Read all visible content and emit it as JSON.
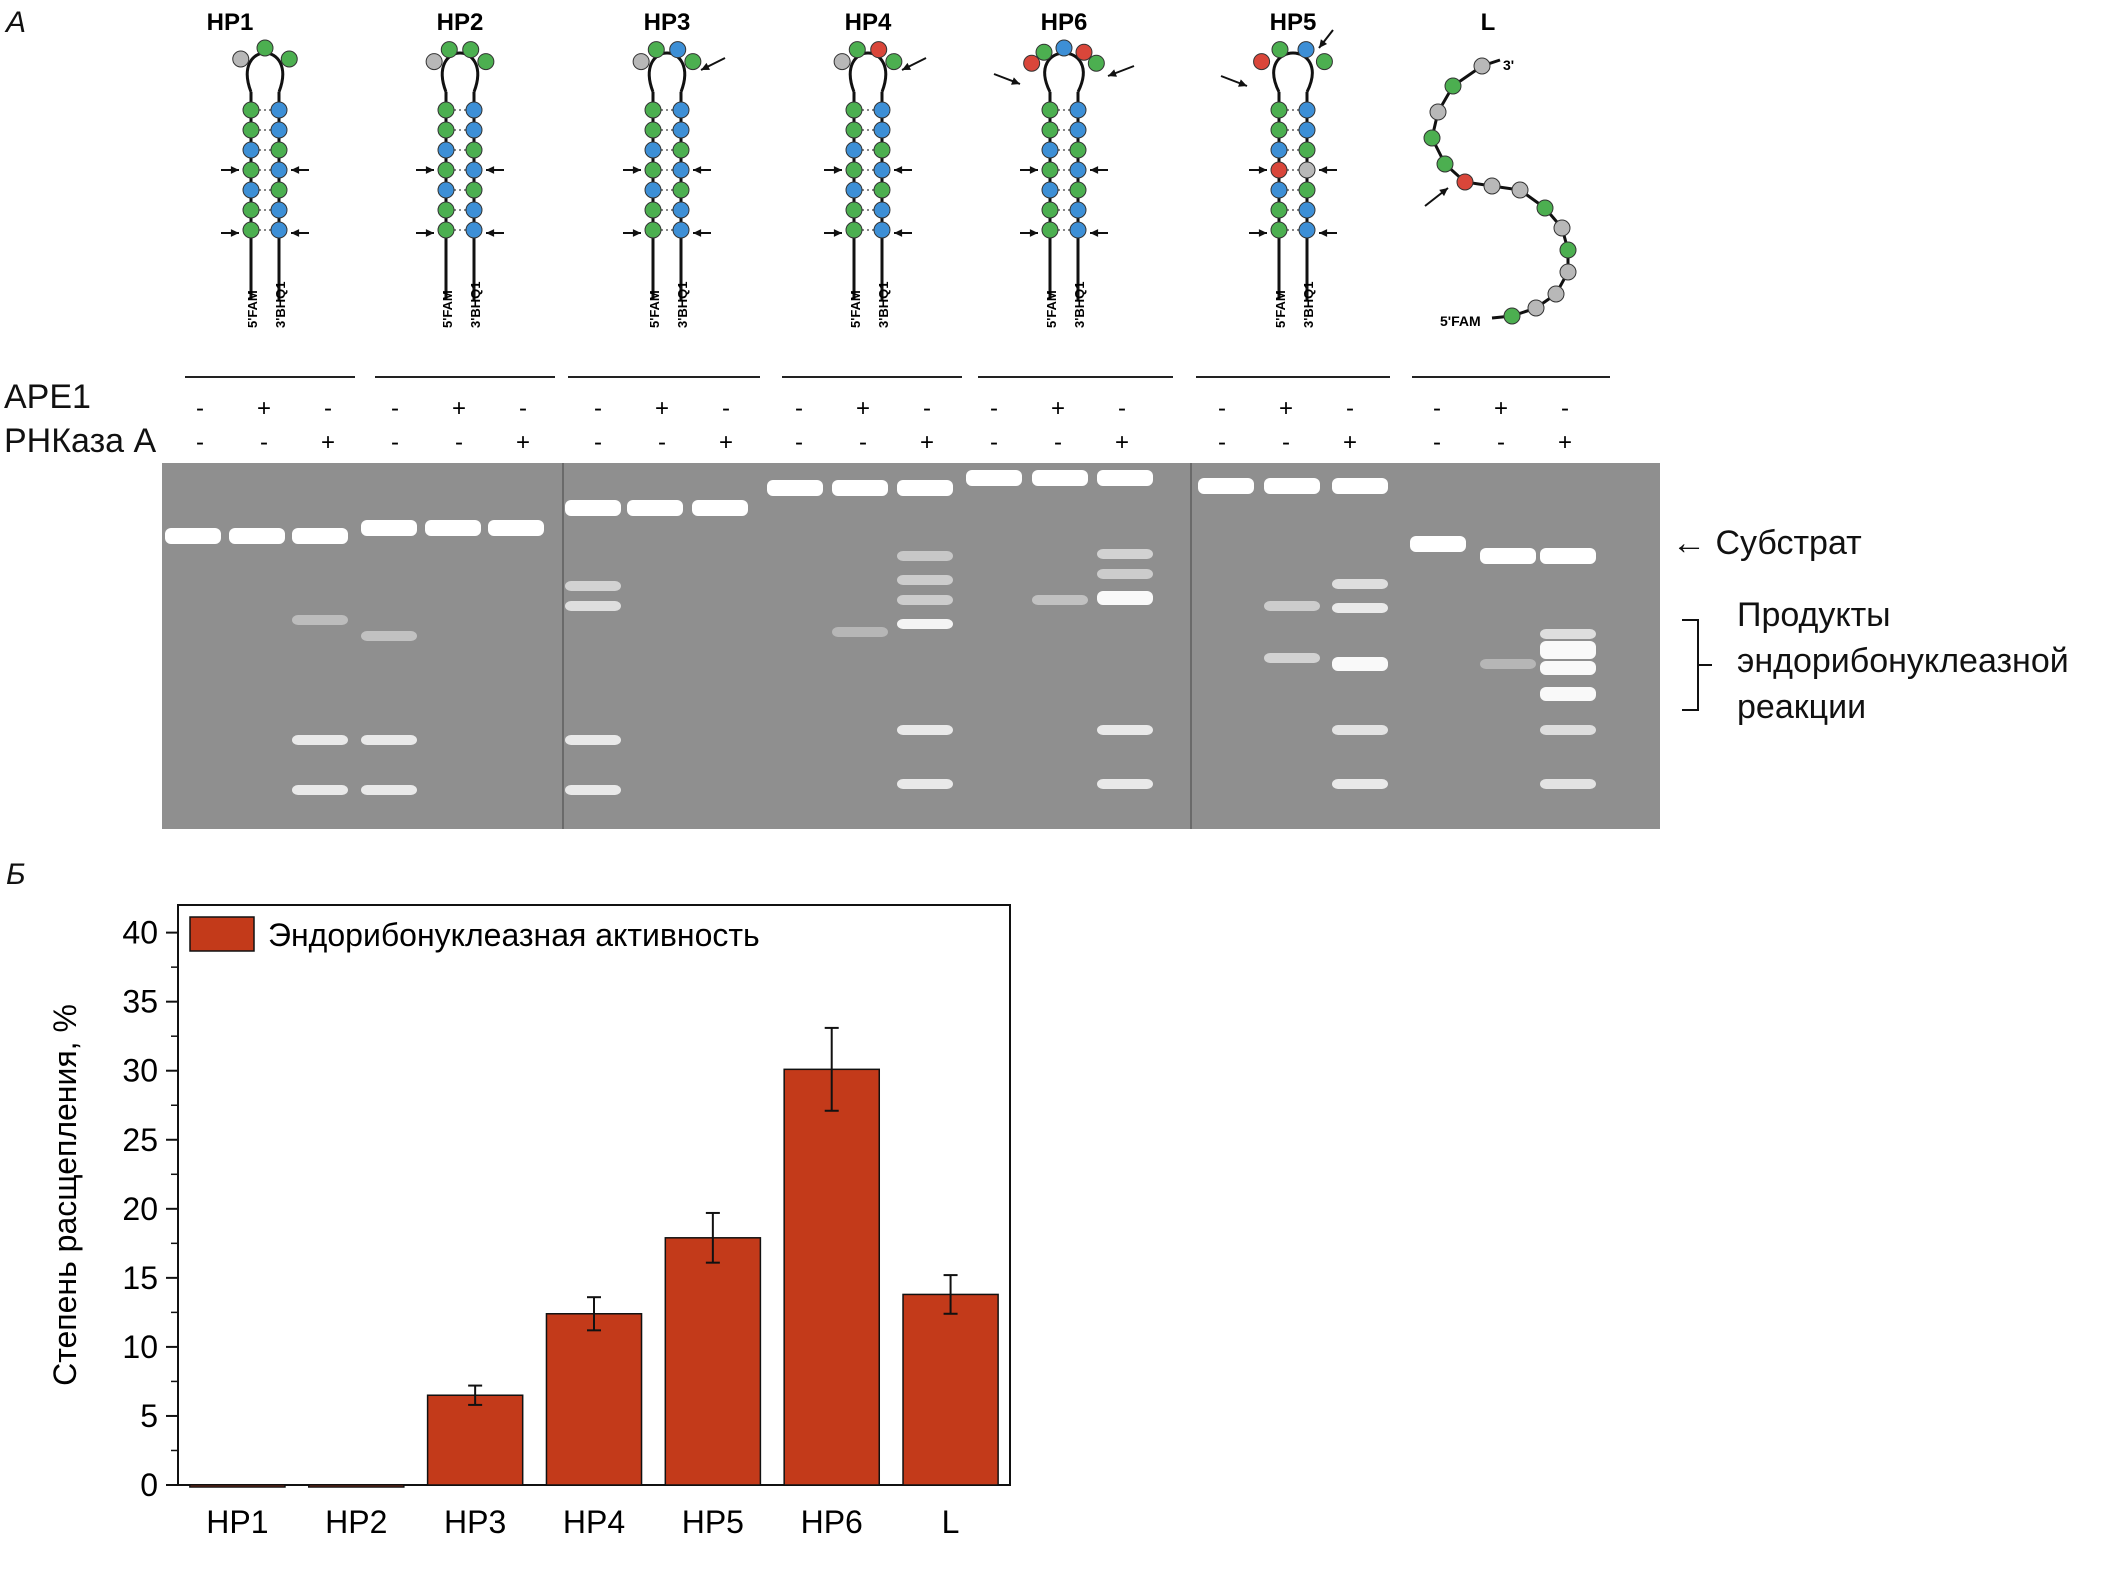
{
  "figure": {
    "panel_a_label": "А",
    "panel_b_label": "Б"
  },
  "panel_a": {
    "substrates": [
      "HP1",
      "HP2",
      "HP3",
      "HP4",
      "HP6",
      "HP5",
      "L"
    ],
    "end_labels": {
      "five_prime": "5'FAM",
      "three_prime": "3'BHQ1",
      "three_prime_short": "3'"
    },
    "row_labels": {
      "ape1": "APE1",
      "rnase": "РНКаза А"
    },
    "lane_conditions": [
      {
        "ape1": "-",
        "rnase": "-"
      },
      {
        "ape1": "+",
        "rnase": "-"
      },
      {
        "ape1": "-",
        "rnase": "+"
      }
    ],
    "gel_annotations": {
      "substrate": "Субстрат",
      "products": [
        "Продукты",
        "эндорибонуклеазной",
        "реакции"
      ]
    },
    "colors": {
      "A": "#4caf50",
      "U": "#3d8fd6",
      "G": "#b8b8b8",
      "modified": "#d9463a"
    }
  },
  "chart_data": {
    "type": "bar",
    "categories": [
      "HP1",
      "HP2",
      "HP3",
      "HP4",
      "HP5",
      "HP6",
      "L"
    ],
    "series": [
      {
        "name": "Эндорибонуклеазная активность",
        "values": [
          0,
          0,
          6.5,
          12.4,
          17.9,
          30.1,
          13.8
        ],
        "errors": [
          0,
          0,
          0.7,
          1.2,
          1.8,
          3.0,
          1.4
        ],
        "color": "#c33a1a"
      }
    ],
    "xlabel": "",
    "ylabel": "Степень расщепления, %",
    "ylim": [
      0,
      42
    ],
    "yticks": [
      0,
      5,
      10,
      15,
      20,
      25,
      30,
      35,
      40
    ],
    "grid": false,
    "legend_position": "top-left"
  }
}
